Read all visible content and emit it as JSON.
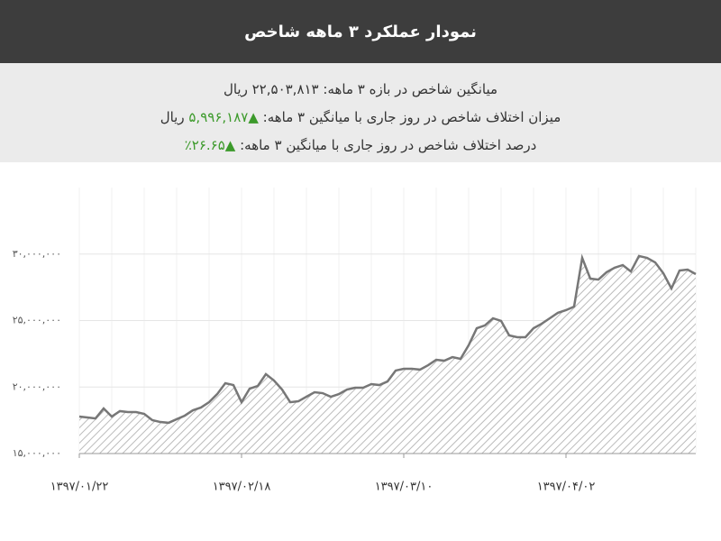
{
  "header": {
    "title": "نمودار عملکرد ۳ ماهه شاخص"
  },
  "summary": [
    {
      "label": "میانگین شاخص در بازه ۳ ماهه:",
      "value": "۲۲,۵۰۳,۸۱۳",
      "unit": "ریال"
    },
    {
      "label": "میزان اختلاف شاخص در روز جاری با میانگین ۳ ماهه:",
      "value": "▲۵,۹۹۶,۱۸۷",
      "unit": "ریال"
    },
    {
      "label": "درصد اختلاف شاخص در روز جاری با میانگین ۳ ماهه:",
      "value": "▲۲۶.۶۵٪"
    }
  ],
  "chart_data": {
    "type": "area",
    "categories": [
      "۱۳۹۷/۰۱/۲۲",
      null,
      null,
      null,
      null,
      null,
      null,
      null,
      null,
      null,
      null,
      null,
      null,
      null,
      null,
      null,
      null,
      null,
      null,
      null,
      "۱۳۹۷/۰۲/۱۸",
      null,
      null,
      null,
      null,
      null,
      null,
      null,
      null,
      null,
      null,
      null,
      null,
      null,
      null,
      null,
      null,
      null,
      null,
      null,
      "۱۳۹۷/۰۳/۱۰",
      null,
      null,
      null,
      null,
      null,
      null,
      null,
      null,
      null,
      null,
      null,
      null,
      null,
      null,
      null,
      null,
      null,
      null,
      null,
      "۱۳۹۷/۰۴/۰۲",
      null,
      null,
      null,
      null,
      null,
      null,
      null,
      null,
      null,
      null,
      null,
      null,
      null,
      null,
      null,
      null
    ],
    "values": [
      17780000,
      17710000,
      17640000,
      18390000,
      17780000,
      18190000,
      18120000,
      18120000,
      17980000,
      17510000,
      17370000,
      17310000,
      17580000,
      17850000,
      18250000,
      18460000,
      18860000,
      19470000,
      20290000,
      20150000,
      18860000,
      19880000,
      20080000,
      20970000,
      20490000,
      19810000,
      18860000,
      18930000,
      19270000,
      19610000,
      19540000,
      19270000,
      19470000,
      19810000,
      19950000,
      19950000,
      20220000,
      20150000,
      20420000,
      21240000,
      21370000,
      21370000,
      21310000,
      21640000,
      22050000,
      21980000,
      22250000,
      22120000,
      23140000,
      24420000,
      24630000,
      25170000,
      24970000,
      23880000,
      23750000,
      23750000,
      24420000,
      24760000,
      25170000,
      25580000,
      25780000,
      26050000,
      29710000,
      28150000,
      28080000,
      28630000,
      28970000,
      29170000,
      28690000,
      29850000,
      29710000,
      29370000,
      28560000,
      27410000,
      28760000,
      28830000,
      28490000
    ],
    "color": "#777777",
    "ylim": [
      15000000,
      35000000
    ],
    "yticks": [
      {
        "value": 15000000,
        "label": "۱۵,۰۰۰,۰۰۰"
      },
      {
        "value": 20000000,
        "label": "۲۰,۰۰۰,۰۰۰"
      },
      {
        "value": 25000000,
        "label": "۲۵,۰۰۰,۰۰۰"
      },
      {
        "value": 30000000,
        "label": "۳۰,۰۰۰,۰۰۰"
      }
    ],
    "grid": true
  }
}
